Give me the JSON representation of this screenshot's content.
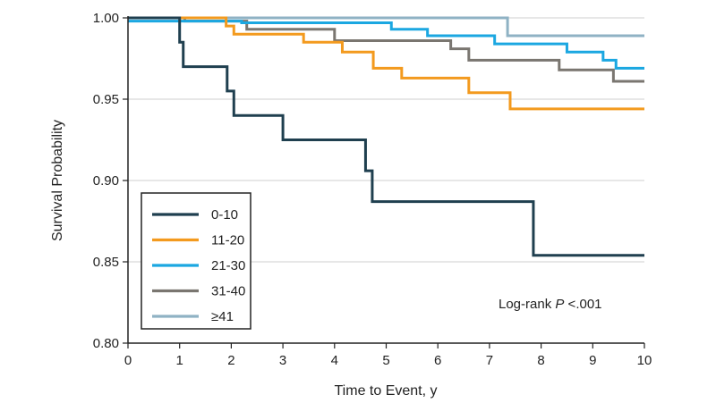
{
  "chart_data": {
    "type": "line",
    "step": true,
    "xlabel": "Time to Event, y",
    "ylabel": "Survival Probability",
    "xlim": [
      0,
      10
    ],
    "ylim": [
      0.8,
      1.0
    ],
    "xticks": [
      0,
      1,
      2,
      3,
      4,
      5,
      6,
      7,
      8,
      9,
      10
    ],
    "yticks": [
      0.8,
      0.85,
      0.9,
      0.95,
      1.0
    ],
    "xtick_labels": [
      "0",
      "1",
      "2",
      "3",
      "4",
      "5",
      "6",
      "7",
      "8",
      "9",
      "10"
    ],
    "ytick_labels": [
      "0.80",
      "0.85",
      "0.90",
      "0.95",
      "1.00"
    ],
    "grid": "horizontal",
    "legend": {
      "placement": "bottom-left"
    },
    "annotation": {
      "prefix": "Log-rank ",
      "italic": "P",
      "suffix": " <.001"
    },
    "series": [
      {
        "name": "0-10",
        "color": "#1f3f4f",
        "x": [
          0,
          1.0,
          1.07,
          1.92,
          2.05,
          3.0,
          4.6,
          4.73,
          7.85,
          10
        ],
        "y": [
          1.0,
          0.985,
          0.97,
          0.955,
          0.94,
          0.925,
          0.906,
          0.887,
          0.854,
          0.854
        ]
      },
      {
        "name": "11-20",
        "color": "#f39a1e",
        "x": [
          0,
          1.9,
          2.05,
          3.4,
          4.15,
          4.75,
          5.3,
          6.6,
          7.4,
          10
        ],
        "y": [
          1.0,
          0.995,
          0.99,
          0.985,
          0.979,
          0.969,
          0.963,
          0.954,
          0.944,
          0.944
        ]
      },
      {
        "name": "21-30",
        "color": "#1ba7e1",
        "x": [
          0,
          2.2,
          5.1,
          5.8,
          7.1,
          8.5,
          9.2,
          9.45,
          10
        ],
        "y": [
          0.998,
          0.997,
          0.993,
          0.989,
          0.984,
          0.979,
          0.974,
          0.969,
          0.969
        ]
      },
      {
        "name": "31-40",
        "color": "#7a7670",
        "x": [
          0,
          1.1,
          2.3,
          4.0,
          6.25,
          6.6,
          8.35,
          9.4,
          10
        ],
        "y": [
          1.0,
          0.998,
          0.993,
          0.986,
          0.981,
          0.974,
          0.968,
          0.961,
          0.961
        ]
      },
      {
        "name": "≥41",
        "color": "#8fb2c4",
        "x": [
          0,
          7.35,
          10
        ],
        "y": [
          1.0,
          0.989,
          0.989
        ]
      }
    ]
  }
}
